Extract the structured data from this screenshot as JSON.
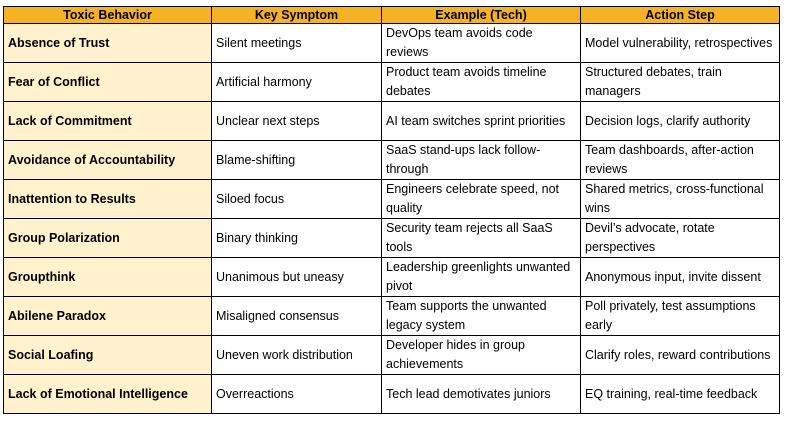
{
  "table": {
    "headers": [
      "Toxic Behavior",
      "Key Symptom",
      "Example (Tech)",
      "Action Step"
    ],
    "rows": [
      [
        "Absence of Trust",
        "Silent meetings",
        "DevOps team avoids code reviews",
        "Model vulnerability, retrospectives"
      ],
      [
        "Fear of Conflict",
        "Artificial harmony",
        "Product team avoids timeline debates",
        "Structured debates, train managers"
      ],
      [
        "Lack of Commitment",
        "Unclear next steps",
        "AI team switches sprint priorities",
        "Decision logs, clarify authority"
      ],
      [
        "Avoidance of Accountability",
        "Blame-shifting",
        "SaaS stand-ups lack follow-through",
        "Team dashboards, after-action reviews"
      ],
      [
        "Inattention to Results",
        "Siloed focus",
        "Engineers celebrate speed, not quality",
        "Shared metrics, cross-functional wins"
      ],
      [
        "Group Polarization",
        "Binary thinking",
        "Security team rejects all SaaS tools",
        "Devil’s advocate, rotate perspectives"
      ],
      [
        "Groupthink",
        "Unanimous but uneasy",
        "Leadership greenlights unwanted pivot",
        "Anonymous input, invite dissent"
      ],
      [
        "Abilene Paradox",
        "Misaligned consensus",
        "Team supports the unwanted legacy system",
        "Poll privately, test assumptions early"
      ],
      [
        "Social Loafing",
        "Uneven work distribution",
        "Developer hides in group achievements",
        "Clarify roles, reward contributions"
      ],
      [
        "Lack of Emotional Intelligence",
        "Overreactions",
        "Tech lead demotivates juniors",
        "EQ training, real-time feedback"
      ]
    ]
  },
  "colors": {
    "header_bg": "#f5b324",
    "behavior_bg": "#fff2cc",
    "border": "#000000"
  }
}
